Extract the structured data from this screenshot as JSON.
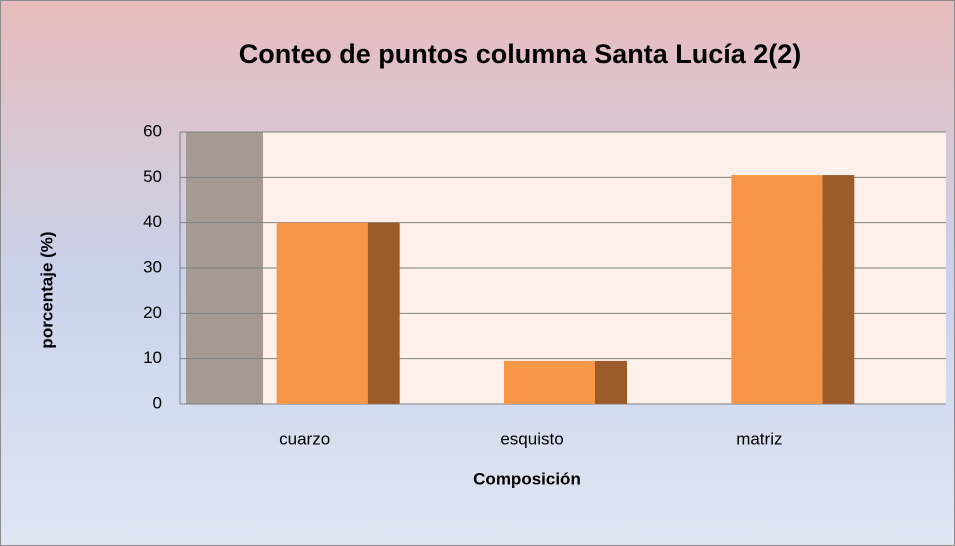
{
  "chart_data": {
    "type": "bar",
    "title": "Conteo de puntos columna Santa Lucía 2(2)",
    "categories": [
      "cuarzo",
      "esquisto",
      "matriz"
    ],
    "values": [
      40,
      9.5,
      50.5
    ],
    "color": "#f79646",
    "side_color": "#9c5b2b",
    "xlabel": "Composición",
    "ylabel": "porcentaje (%)",
    "ylim": [
      0,
      60
    ],
    "yticks": [
      0,
      10,
      20,
      30,
      40,
      50,
      60
    ],
    "grid": true
  }
}
